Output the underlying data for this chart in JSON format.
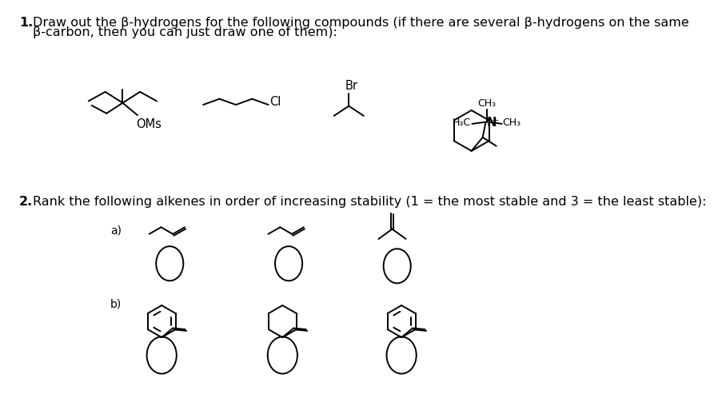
{
  "bg_color": "#ffffff",
  "text_color": "#000000",
  "q1_line1": "Draw out the β-hydrogens for the following compounds (if there are several β-hydrogens on the same",
  "q1_line2": "β-carbon, then you can just draw one of them):",
  "q2_text": "Rank the following alkenes in order of increasing stability (1 = the most stable and 3 = the least stable):",
  "lw": 1.4,
  "fontsize_main": 11.5,
  "fontsize_label": 9.5,
  "fontsize_chem": 10.5
}
